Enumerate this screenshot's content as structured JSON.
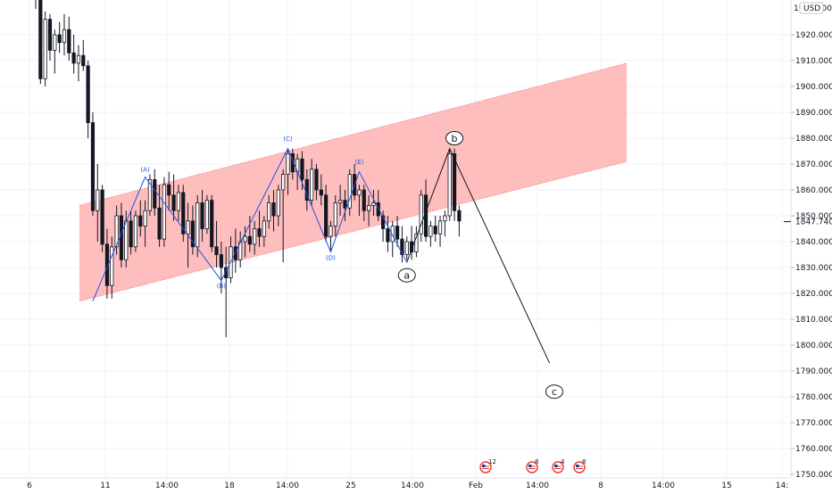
{
  "header": {
    "currency_label": "USD",
    "truncated_price_label": "1930.000"
  },
  "chart_data": {
    "type": "candlestick",
    "title": "",
    "xlabel": "",
    "ylabel": "",
    "ylim": [
      1748,
      1943
    ],
    "grid": true,
    "y_ticks": [
      "1920.000",
      "1910.000",
      "1900.000",
      "1890.000",
      "1880.000",
      "1870.000",
      "1860.000",
      "1850.000",
      "1840.000",
      "1830.000",
      "1820.000",
      "1810.000",
      "1800.000",
      "1790.000",
      "1780.000",
      "1770.000",
      "1760.000",
      "1750.000"
    ],
    "x_ticks": [
      "6",
      "11",
      "14:00",
      "18",
      "14:00",
      "25",
      "14:00",
      "Feb",
      "14:00",
      "8",
      "14:00",
      "15",
      "14:"
    ],
    "current_price": "1847.740",
    "candles_ohlc": [
      [
        1935,
        1943,
        1930,
        1938
      ],
      [
        1938,
        1940,
        1901,
        1903
      ],
      [
        1903,
        1929,
        1900,
        1926
      ],
      [
        1926,
        1928,
        1910,
        1914
      ],
      [
        1914,
        1922,
        1905,
        1920
      ],
      [
        1920,
        1925,
        1913,
        1917
      ],
      [
        1917,
        1928,
        1912,
        1922
      ],
      [
        1922,
        1927,
        1910,
        1913
      ],
      [
        1913,
        1920,
        1905,
        1909
      ],
      [
        1909,
        1916,
        1902,
        1912
      ],
      [
        1912,
        1918,
        1906,
        1908
      ],
      [
        1908,
        1910,
        1880,
        1886
      ],
      [
        1886,
        1890,
        1850,
        1852
      ],
      [
        1852,
        1870,
        1840,
        1860
      ],
      [
        1860,
        1862,
        1836,
        1839
      ],
      [
        1839,
        1845,
        1818,
        1823
      ],
      [
        1823,
        1842,
        1818,
        1838
      ],
      [
        1838,
        1854,
        1835,
        1850
      ],
      [
        1850,
        1855,
        1830,
        1833
      ],
      [
        1833,
        1852,
        1830,
        1848
      ],
      [
        1848,
        1852,
        1835,
        1838
      ],
      [
        1838,
        1852,
        1836,
        1850
      ],
      [
        1850,
        1856,
        1842,
        1846
      ],
      [
        1846,
        1856,
        1838,
        1852
      ],
      [
        1852,
        1866,
        1850,
        1864
      ],
      [
        1864,
        1868,
        1850,
        1853
      ],
      [
        1853,
        1862,
        1838,
        1841
      ],
      [
        1841,
        1865,
        1838,
        1862
      ],
      [
        1862,
        1867,
        1852,
        1858
      ],
      [
        1858,
        1866,
        1848,
        1852
      ],
      [
        1852,
        1862,
        1848,
        1859
      ],
      [
        1859,
        1862,
        1840,
        1843
      ],
      [
        1843,
        1855,
        1830,
        1848
      ],
      [
        1848,
        1854,
        1835,
        1838
      ],
      [
        1838,
        1858,
        1834,
        1855
      ],
      [
        1855,
        1860,
        1840,
        1845
      ],
      [
        1845,
        1858,
        1843,
        1856
      ],
      [
        1856,
        1858,
        1836,
        1838
      ],
      [
        1838,
        1848,
        1830,
        1835
      ],
      [
        1835,
        1840,
        1820,
        1830
      ],
      [
        1830,
        1838,
        1803,
        1826
      ],
      [
        1826,
        1842,
        1824,
        1838
      ],
      [
        1838,
        1845,
        1828,
        1833
      ],
      [
        1833,
        1844,
        1830,
        1840
      ],
      [
        1840,
        1846,
        1834,
        1842
      ],
      [
        1842,
        1850,
        1836,
        1839
      ],
      [
        1839,
        1848,
        1835,
        1845
      ],
      [
        1845,
        1852,
        1838,
        1842
      ],
      [
        1842,
        1850,
        1838,
        1848
      ],
      [
        1848,
        1858,
        1845,
        1855
      ],
      [
        1855,
        1860,
        1844,
        1850
      ],
      [
        1850,
        1862,
        1846,
        1860
      ],
      [
        1860,
        1868,
        1832,
        1866
      ],
      [
        1866,
        1876,
        1858,
        1874
      ],
      [
        1874,
        1876,
        1864,
        1867
      ],
      [
        1867,
        1874,
        1860,
        1872
      ],
      [
        1872,
        1875,
        1860,
        1864
      ],
      [
        1864,
        1868,
        1852,
        1856
      ],
      [
        1856,
        1872,
        1854,
        1868
      ],
      [
        1868,
        1870,
        1856,
        1860
      ],
      [
        1860,
        1866,
        1854,
        1858
      ],
      [
        1858,
        1862,
        1840,
        1842
      ],
      [
        1842,
        1848,
        1836,
        1846
      ],
      [
        1846,
        1858,
        1842,
        1855
      ],
      [
        1855,
        1862,
        1850,
        1856
      ],
      [
        1856,
        1860,
        1848,
        1853
      ],
      [
        1853,
        1868,
        1850,
        1866
      ],
      [
        1866,
        1870,
        1856,
        1858
      ],
      [
        1858,
        1862,
        1850,
        1860
      ],
      [
        1860,
        1862,
        1848,
        1852
      ],
      [
        1852,
        1858,
        1846,
        1854
      ],
      [
        1854,
        1860,
        1850,
        1855
      ],
      [
        1855,
        1860,
        1848,
        1850
      ],
      [
        1850,
        1852,
        1840,
        1845
      ],
      [
        1845,
        1850,
        1836,
        1840
      ],
      [
        1840,
        1848,
        1834,
        1846
      ],
      [
        1846,
        1850,
        1838,
        1841
      ],
      [
        1841,
        1846,
        1832,
        1835
      ],
      [
        1835,
        1842,
        1833,
        1840
      ],
      [
        1840,
        1846,
        1833,
        1836
      ],
      [
        1836,
        1846,
        1834,
        1843
      ],
      [
        1843,
        1860,
        1840,
        1858
      ],
      [
        1858,
        1864,
        1840,
        1842
      ],
      [
        1842,
        1848,
        1838,
        1846
      ],
      [
        1846,
        1850,
        1840,
        1843
      ],
      [
        1843,
        1850,
        1838,
        1848
      ],
      [
        1848,
        1852,
        1842,
        1850
      ],
      [
        1850,
        1876,
        1848,
        1874
      ],
      [
        1874,
        1876,
        1848,
        1852
      ],
      [
        1852,
        1854,
        1842,
        1848
      ]
    ],
    "annotations": {
      "wave_labels": [
        "(A)",
        "(B)",
        "(C)",
        "(D)",
        "(E)"
      ],
      "circle_labels": [
        "a",
        "b",
        "c"
      ]
    }
  },
  "colors": {
    "channel_fill": "#ffb3b3",
    "channel_edge": "#f08080",
    "candle": "#131722",
    "wave_line": "#1e53e5",
    "projection_line": "#131722",
    "grid": "#f0f3fa"
  },
  "calendar_events": [
    {
      "icon": "us-flag-icon",
      "count": "12"
    },
    {
      "icon": "us-flag-icon",
      "count": "8"
    },
    {
      "icon": "us-flag-icon",
      "count": "4"
    },
    {
      "icon": "us-flag-icon",
      "count": "8"
    }
  ]
}
